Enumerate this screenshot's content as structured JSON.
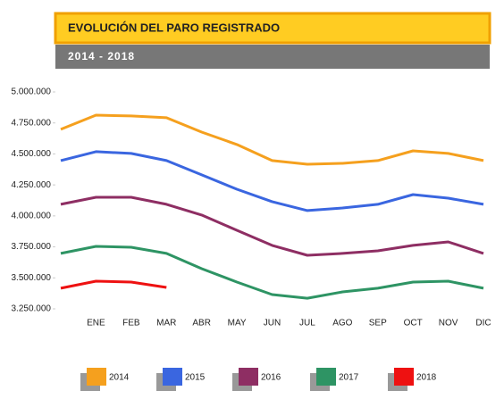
{
  "chart_data": {
    "type": "line",
    "title": "EVOLUCIÓN DEL PARO REGISTRADO",
    "subtitle": "2014 - 2018",
    "categories": [
      null,
      "ENE",
      "FEB",
      "MAR",
      "ABR",
      "MAY",
      "JUN",
      "JUL",
      "AGO",
      "SEP",
      "OCT",
      "NOV",
      "DIC"
    ],
    "series": [
      {
        "name": "2014",
        "color": "#f5a01e",
        "values": [
          4698000,
          4813000,
          4806000,
          4792000,
          4676000,
          4576000,
          4446000,
          4417000,
          4424000,
          4446000,
          4525000,
          4504000,
          4446000
        ]
      },
      {
        "name": "2015",
        "color": "#3a66e0",
        "values": [
          4446000,
          4518000,
          4504000,
          4446000,
          4331000,
          4215000,
          4115000,
          4043000,
          4064000,
          4093000,
          4172000,
          4143000,
          4093000
        ]
      },
      {
        "name": "2016",
        "color": "#8e2e63",
        "values": [
          4093000,
          4150000,
          4150000,
          4093000,
          4007000,
          3884000,
          3762000,
          3682000,
          3697000,
          3718000,
          3762000,
          3790000,
          3697000
        ]
      },
      {
        "name": "2017",
        "color": "#2e9464",
        "values": [
          3697000,
          3754000,
          3747000,
          3697000,
          3574000,
          3466000,
          3365000,
          3336000,
          3387000,
          3416000,
          3466000,
          3473000,
          3416000
        ]
      },
      {
        "name": "2018",
        "color": "#ee1111",
        "values": [
          3416000,
          3473000,
          3466000,
          3423000,
          null,
          null,
          null,
          null,
          null,
          null,
          null,
          null,
          null
        ]
      }
    ],
    "ylim": [
      3250000,
      5000000
    ],
    "yticks": [
      {
        "value": 3250000,
        "label": "3.250.000"
      },
      {
        "value": 3500000,
        "label": "3.500.000"
      },
      {
        "value": 3750000,
        "label": "3.750.000"
      },
      {
        "value": 4000000,
        "label": "4.000.000"
      },
      {
        "value": 4250000,
        "label": "4.250.000"
      },
      {
        "value": 4500000,
        "label": "4.500.000"
      },
      {
        "value": 4750000,
        "label": "4.750.000"
      },
      {
        "value": 5000000,
        "label": "5.000.000"
      }
    ],
    "legend": "bottom"
  }
}
